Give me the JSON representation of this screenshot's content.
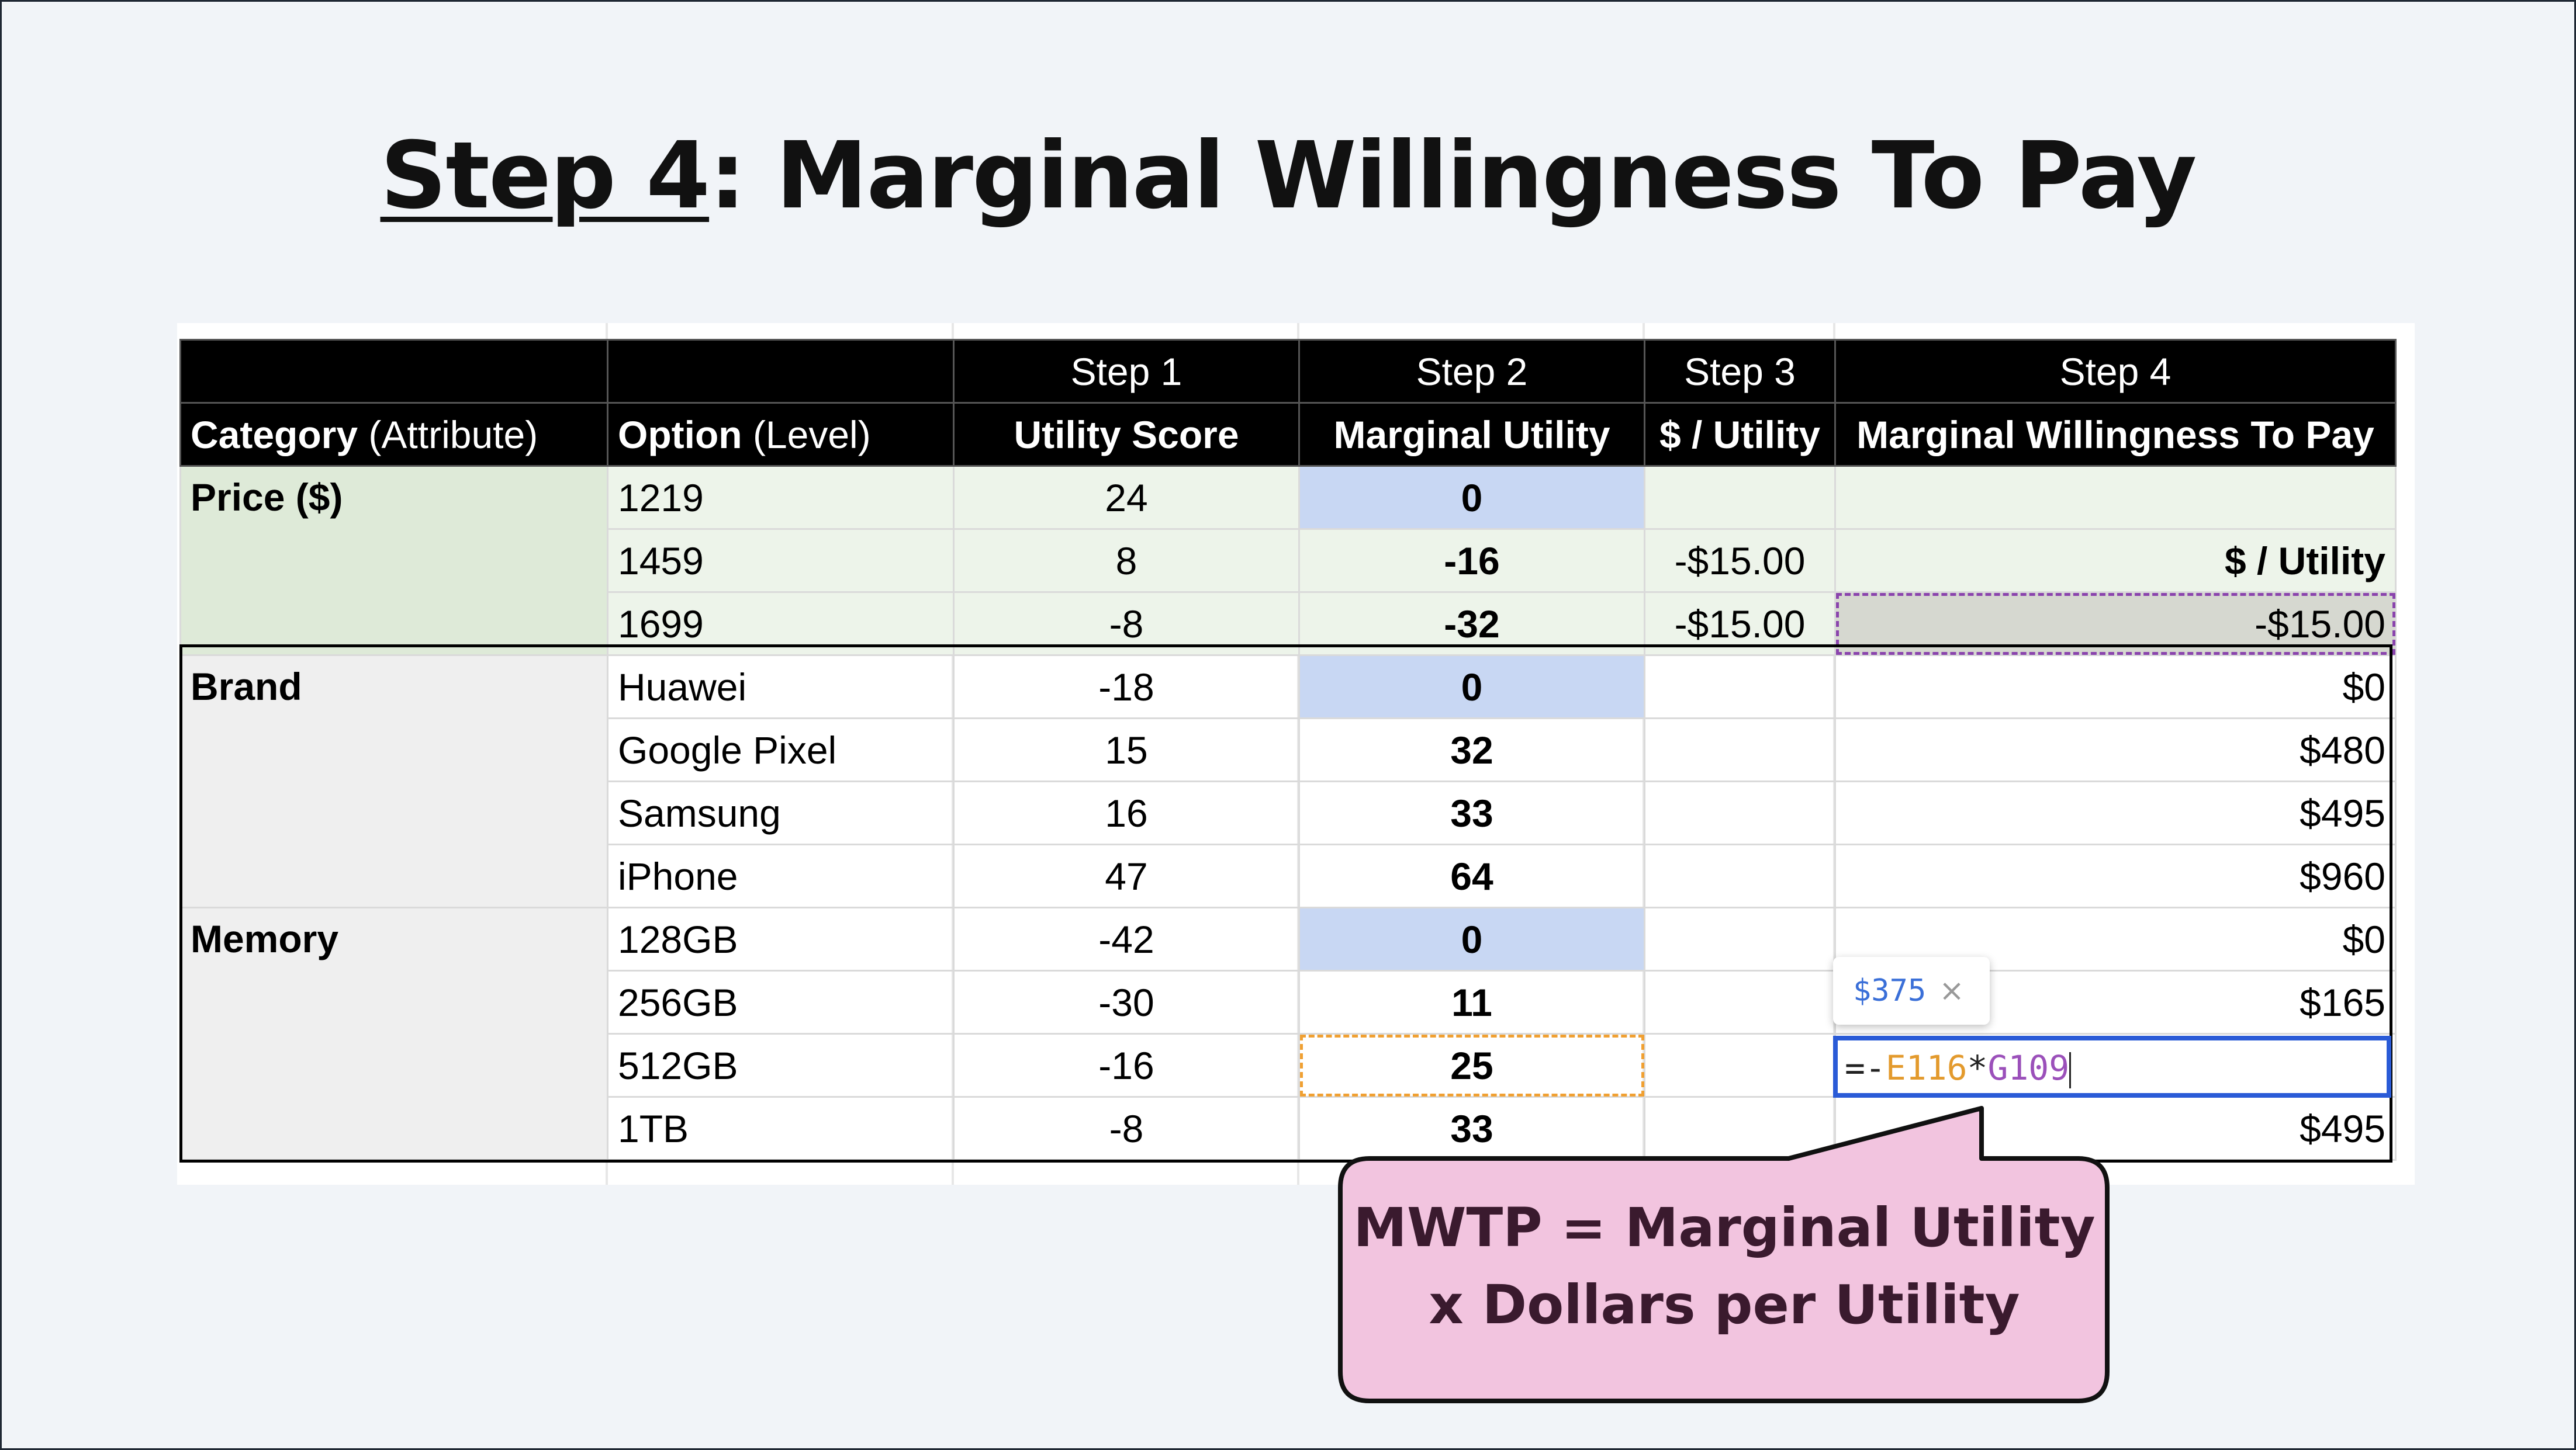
{
  "title": {
    "underlined": "Step 4",
    "rest": ": Marginal Willingness To Pay"
  },
  "header": {
    "steps": [
      "Step 1",
      "Step 2",
      "Step 3",
      "Step 4"
    ],
    "col_category": "Category",
    "col_category_note": "(Attribute)",
    "col_option": "Option",
    "col_option_note": "(Level)",
    "col_utility": "Utility Score",
    "col_marginal": "Marginal Utility",
    "col_dollar": "$ / Utility",
    "col_mwtp": "Marginal Willingness To Pay"
  },
  "rows": [
    {
      "category": "Price ($)",
      "option": "1219",
      "utility": "24",
      "marginal": "0",
      "dollar": "",
      "mwtp": ""
    },
    {
      "category": "",
      "option": "1459",
      "utility": "8",
      "marginal": "-16",
      "dollar": "-$15.00",
      "mwtp": "$ / Utility"
    },
    {
      "category": "",
      "option": "1699",
      "utility": "-8",
      "marginal": "-32",
      "dollar": "-$15.00",
      "mwtp": "-$15.00"
    },
    {
      "category": "Brand",
      "option": "Huawei",
      "utility": "-18",
      "marginal": "0",
      "dollar": "",
      "mwtp": "$0"
    },
    {
      "category": "",
      "option": "Google Pixel",
      "utility": "15",
      "marginal": "32",
      "dollar": "",
      "mwtp": "$480"
    },
    {
      "category": "",
      "option": "Samsung",
      "utility": "16",
      "marginal": "33",
      "dollar": "",
      "mwtp": "$495"
    },
    {
      "category": "",
      "option": "iPhone",
      "utility": "47",
      "marginal": "64",
      "dollar": "",
      "mwtp": "$960"
    },
    {
      "category": "Memory",
      "option": "128GB",
      "utility": "-42",
      "marginal": "0",
      "dollar": "",
      "mwtp": "$0"
    },
    {
      "category": "",
      "option": "256GB",
      "utility": "-30",
      "marginal": "11",
      "dollar": "",
      "mwtp": "$165"
    },
    {
      "category": "",
      "option": "512GB",
      "utility": "-16",
      "marginal": "25",
      "dollar": "",
      "mwtp": ""
    },
    {
      "category": "",
      "option": "1TB",
      "utility": "-8",
      "marginal": "33",
      "dollar": "",
      "mwtp": "$495"
    }
  ],
  "formula_editor": {
    "prefix": "=-",
    "ref1": "E116",
    "op": "*",
    "ref2": "G109"
  },
  "formula_tooltip": {
    "value": "$375",
    "close": "×"
  },
  "callout": {
    "line1": "MWTP = Marginal Utility",
    "line2": "x Dollars per Utility"
  },
  "colors": {
    "header_bg": "#000000",
    "price_green": "#deead8",
    "baseline_blue": "#c8d7f3",
    "editor_blue": "#2a5bd7",
    "callout_pink": "#f2c4df"
  }
}
